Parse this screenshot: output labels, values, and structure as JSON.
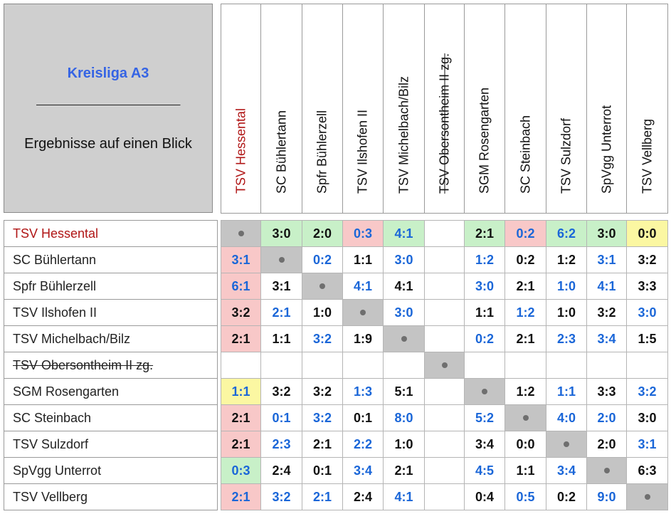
{
  "title": {
    "league": "Kreisliga A3",
    "divider": "________________________",
    "subtitle": "Ergebnisse auf einen Blick"
  },
  "colors": {
    "home_team": "#b01515",
    "blue_result": "#1a66d8",
    "black_result": "#111111",
    "diag": "#c4c4c4",
    "red_bg": "#f8c8c8",
    "green_bg": "#c8f0c8",
    "yellow_bg": "#fbf7a2"
  },
  "teams": [
    {
      "name": "TSV Hessental",
      "highlight": true,
      "struck": false
    },
    {
      "name": "SC Bühlertann",
      "highlight": false,
      "struck": false
    },
    {
      "name": "Spfr Bühlerzell",
      "highlight": false,
      "struck": false
    },
    {
      "name": "TSV Ilshofen II",
      "highlight": false,
      "struck": false
    },
    {
      "name": "TSV Michelbach/Bilz",
      "highlight": false,
      "struck": false
    },
    {
      "name": "TSV Obersontheim II zg.",
      "highlight": false,
      "struck": true
    },
    {
      "name": "SGM Rosengarten",
      "highlight": false,
      "struck": false
    },
    {
      "name": "SC Steinbach",
      "highlight": false,
      "struck": false
    },
    {
      "name": "TSV Sulzdorf",
      "highlight": false,
      "struck": false
    },
    {
      "name": "SpVgg Unterrot",
      "highlight": false,
      "struck": false
    },
    {
      "name": "TSV Vellberg",
      "highlight": false,
      "struck": false
    }
  ],
  "results": [
    [
      {
        "v": "",
        "c": "d"
      },
      {
        "v": "3:0",
        "c": "k",
        "bg": "g"
      },
      {
        "v": "2:0",
        "c": "k",
        "bg": "g"
      },
      {
        "v": "0:3",
        "c": "b",
        "bg": "r"
      },
      {
        "v": "4:1",
        "c": "b",
        "bg": "g"
      },
      {
        "v": "",
        "c": "k"
      },
      {
        "v": "2:1",
        "c": "k",
        "bg": "g"
      },
      {
        "v": "0:2",
        "c": "b",
        "bg": "r"
      },
      {
        "v": "6:2",
        "c": "b",
        "bg": "g"
      },
      {
        "v": "3:0",
        "c": "k",
        "bg": "g"
      },
      {
        "v": "0:0",
        "c": "k",
        "bg": "y"
      }
    ],
    [
      {
        "v": "3:1",
        "c": "b",
        "bg": "r"
      },
      {
        "v": "",
        "c": "d"
      },
      {
        "v": "0:2",
        "c": "b"
      },
      {
        "v": "1:1",
        "c": "k"
      },
      {
        "v": "3:0",
        "c": "b"
      },
      {
        "v": "",
        "c": "k"
      },
      {
        "v": "1:2",
        "c": "b"
      },
      {
        "v": "0:2",
        "c": "k"
      },
      {
        "v": "1:2",
        "c": "k"
      },
      {
        "v": "3:1",
        "c": "b"
      },
      {
        "v": "3:2",
        "c": "k"
      }
    ],
    [
      {
        "v": "6:1",
        "c": "b",
        "bg": "r"
      },
      {
        "v": "3:1",
        "c": "k"
      },
      {
        "v": "",
        "c": "d"
      },
      {
        "v": "4:1",
        "c": "b"
      },
      {
        "v": "4:1",
        "c": "k"
      },
      {
        "v": "",
        "c": "k"
      },
      {
        "v": "3:0",
        "c": "b"
      },
      {
        "v": "2:1",
        "c": "k"
      },
      {
        "v": "1:0",
        "c": "b"
      },
      {
        "v": "4:1",
        "c": "b"
      },
      {
        "v": "3:3",
        "c": "k"
      }
    ],
    [
      {
        "v": "3:2",
        "c": "k",
        "bg": "r"
      },
      {
        "v": "2:1",
        "c": "b"
      },
      {
        "v": "1:0",
        "c": "k"
      },
      {
        "v": "",
        "c": "d"
      },
      {
        "v": "3:0",
        "c": "b"
      },
      {
        "v": "",
        "c": "k"
      },
      {
        "v": "1:1",
        "c": "k"
      },
      {
        "v": "1:2",
        "c": "b"
      },
      {
        "v": "1:0",
        "c": "k"
      },
      {
        "v": "3:2",
        "c": "k"
      },
      {
        "v": "3:0",
        "c": "b"
      }
    ],
    [
      {
        "v": "2:1",
        "c": "k",
        "bg": "r"
      },
      {
        "v": "1:1",
        "c": "k"
      },
      {
        "v": "3:2",
        "c": "b"
      },
      {
        "v": "1:9",
        "c": "k"
      },
      {
        "v": "",
        "c": "d"
      },
      {
        "v": "",
        "c": "k"
      },
      {
        "v": "0:2",
        "c": "b"
      },
      {
        "v": "2:1",
        "c": "k"
      },
      {
        "v": "2:3",
        "c": "b"
      },
      {
        "v": "3:4",
        "c": "b"
      },
      {
        "v": "1:5",
        "c": "k"
      }
    ],
    [
      {
        "v": "",
        "c": "k"
      },
      {
        "v": "",
        "c": "k"
      },
      {
        "v": "",
        "c": "k"
      },
      {
        "v": "",
        "c": "k"
      },
      {
        "v": "",
        "c": "k"
      },
      {
        "v": "",
        "c": "d"
      },
      {
        "v": "",
        "c": "k"
      },
      {
        "v": "",
        "c": "k"
      },
      {
        "v": "",
        "c": "k"
      },
      {
        "v": "",
        "c": "k"
      },
      {
        "v": "",
        "c": "k"
      }
    ],
    [
      {
        "v": "1:1",
        "c": "b",
        "bg": "y"
      },
      {
        "v": "3:2",
        "c": "k"
      },
      {
        "v": "3:2",
        "c": "k"
      },
      {
        "v": "1:3",
        "c": "b"
      },
      {
        "v": "5:1",
        "c": "k"
      },
      {
        "v": "",
        "c": "k"
      },
      {
        "v": "",
        "c": "d"
      },
      {
        "v": "1:2",
        "c": "k"
      },
      {
        "v": "1:1",
        "c": "b"
      },
      {
        "v": "3:3",
        "c": "k"
      },
      {
        "v": "3:2",
        "c": "b"
      }
    ],
    [
      {
        "v": "2:1",
        "c": "k",
        "bg": "r"
      },
      {
        "v": "0:1",
        "c": "b"
      },
      {
        "v": "3:2",
        "c": "b"
      },
      {
        "v": "0:1",
        "c": "k"
      },
      {
        "v": "8:0",
        "c": "b"
      },
      {
        "v": "",
        "c": "k"
      },
      {
        "v": "5:2",
        "c": "b"
      },
      {
        "v": "",
        "c": "d"
      },
      {
        "v": "4:0",
        "c": "b"
      },
      {
        "v": "2:0",
        "c": "b"
      },
      {
        "v": "3:0",
        "c": "k"
      }
    ],
    [
      {
        "v": "2:1",
        "c": "k",
        "bg": "r"
      },
      {
        "v": "2:3",
        "c": "b"
      },
      {
        "v": "2:1",
        "c": "k"
      },
      {
        "v": "2:2",
        "c": "b"
      },
      {
        "v": "1:0",
        "c": "k"
      },
      {
        "v": "",
        "c": "k"
      },
      {
        "v": "3:4",
        "c": "k"
      },
      {
        "v": "0:0",
        "c": "k"
      },
      {
        "v": "",
        "c": "d"
      },
      {
        "v": "2:0",
        "c": "k"
      },
      {
        "v": "3:1",
        "c": "b"
      }
    ],
    [
      {
        "v": "0:3",
        "c": "b",
        "bg": "g"
      },
      {
        "v": "2:4",
        "c": "k"
      },
      {
        "v": "0:1",
        "c": "k"
      },
      {
        "v": "3:4",
        "c": "b"
      },
      {
        "v": "2:1",
        "c": "k"
      },
      {
        "v": "",
        "c": "k"
      },
      {
        "v": "4:5",
        "c": "b"
      },
      {
        "v": "1:1",
        "c": "k"
      },
      {
        "v": "3:4",
        "c": "b"
      },
      {
        "v": "",
        "c": "d"
      },
      {
        "v": "6:3",
        "c": "k"
      }
    ],
    [
      {
        "v": "2:1",
        "c": "b",
        "bg": "r"
      },
      {
        "v": "3:2",
        "c": "b"
      },
      {
        "v": "2:1",
        "c": "b"
      },
      {
        "v": "2:4",
        "c": "k"
      },
      {
        "v": "4:1",
        "c": "b"
      },
      {
        "v": "",
        "c": "k"
      },
      {
        "v": "0:4",
        "c": "k"
      },
      {
        "v": "0:5",
        "c": "b"
      },
      {
        "v": "0:2",
        "c": "k"
      },
      {
        "v": "9:0",
        "c": "b"
      },
      {
        "v": "",
        "c": "d"
      }
    ]
  ]
}
